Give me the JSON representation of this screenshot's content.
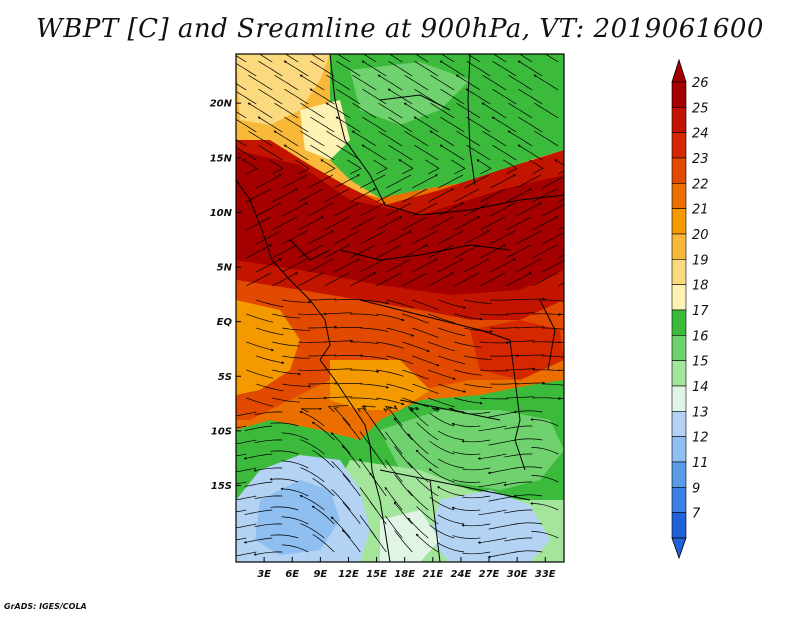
{
  "title": "WBPT [C] and Sreamline at 900hPa, VT: 2019061600",
  "credit": "GrADS: IGES/COLA",
  "map": {
    "lon_range": [
      0,
      35
    ],
    "lat_range": [
      -22,
      24.5
    ],
    "lat_ticks": [
      {
        "value": 20,
        "label": "20N"
      },
      {
        "value": 15,
        "label": "15N"
      },
      {
        "value": 10,
        "label": "10N"
      },
      {
        "value": 5,
        "label": "5N"
      },
      {
        "value": 0,
        "label": "EQ"
      },
      {
        "value": -5,
        "label": "5S"
      },
      {
        "value": -10,
        "label": "10S"
      },
      {
        "value": -15,
        "label": "15S"
      }
    ],
    "lon_ticks": [
      {
        "value": 3,
        "label": "3E"
      },
      {
        "value": 6,
        "label": "6E"
      },
      {
        "value": 9,
        "label": "9E"
      },
      {
        "value": 12,
        "label": "12E"
      },
      {
        "value": 15,
        "label": "15E"
      },
      {
        "value": 18,
        "label": "18E"
      },
      {
        "value": 21,
        "label": "21E"
      },
      {
        "value": 24,
        "label": "24E"
      },
      {
        "value": 27,
        "label": "27E"
      },
      {
        "value": 30,
        "label": "30E"
      },
      {
        "value": 33,
        "label": "33E"
      }
    ]
  },
  "colorbar": {
    "labels": [
      "26",
      "25",
      "24",
      "23",
      "22",
      "21",
      "20",
      "19",
      "18",
      "17",
      "16",
      "15",
      "14",
      "13",
      "12",
      "11",
      "9",
      "7"
    ],
    "colors": [
      "#a50000",
      "#c31400",
      "#d52800",
      "#e14a00",
      "#ea6f00",
      "#f49a00",
      "#f8b93a",
      "#fbd97f",
      "#fcf2b4",
      "#3cba3c",
      "#6fd26f",
      "#a4e59c",
      "#e1f5e6",
      "#b4d3f4",
      "#8fbef0",
      "#5a9be8",
      "#3c7ee2",
      "#2060d8"
    ]
  }
}
